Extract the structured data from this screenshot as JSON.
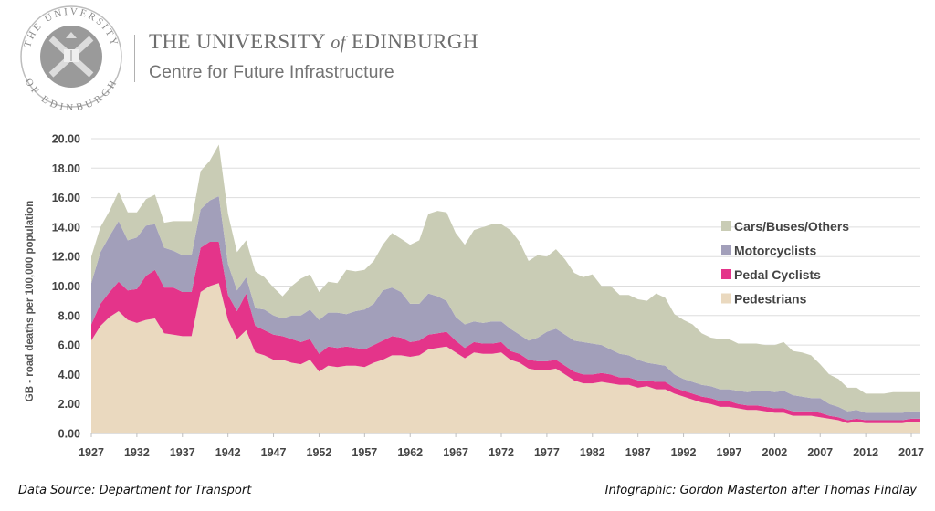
{
  "header": {
    "seal_text_top": "THE UNIVERSITY",
    "seal_text_bottom": "OF EDINBURGH",
    "university_pre": "THE UNIVERSITY ",
    "university_of": "of",
    "university_post": " EDINBURGH",
    "centre": "Centre for Future Infrastructure"
  },
  "footer": {
    "source": "Data Source: Department for Transport",
    "credit": "Infographic: Gordon Masterton after Thomas Findlay"
  },
  "colors": {
    "pedestrians": "#ead9bf",
    "pedal_cyclists": "#e4348a",
    "motorcyclists": "#a29fba",
    "cars": "#c9ccb5",
    "grid": "#dddddd"
  },
  "chart_data": {
    "type": "area",
    "stacked": true,
    "title": "",
    "xlabel": "",
    "ylabel": "GB - road deaths per 100,000 population",
    "ylim": [
      0,
      20
    ],
    "xlim": [
      1927,
      2018
    ],
    "y_ticks": [
      "0.00",
      "2.00",
      "4.00",
      "6.00",
      "8.00",
      "10.00",
      "12.00",
      "14.00",
      "16.00",
      "18.00",
      "20.00"
    ],
    "x_ticks": [
      "1927",
      "1932",
      "1937",
      "1942",
      "1947",
      "1952",
      "1957",
      "1962",
      "1967",
      "1972",
      "1977",
      "1982",
      "1987",
      "1992",
      "1997",
      "2002",
      "2007",
      "2012",
      "2017"
    ],
    "legend_position": "right",
    "legend": [
      "Cars/Buses/Others",
      "Motorcyclists",
      "Pedal Cyclists",
      "Pedestrians"
    ],
    "x": [
      1927,
      1928,
      1929,
      1930,
      1931,
      1932,
      1933,
      1934,
      1935,
      1936,
      1937,
      1938,
      1939,
      1940,
      1941,
      1942,
      1943,
      1944,
      1945,
      1946,
      1947,
      1948,
      1949,
      1950,
      1951,
      1952,
      1953,
      1954,
      1955,
      1956,
      1957,
      1958,
      1959,
      1960,
      1961,
      1962,
      1963,
      1964,
      1965,
      1966,
      1967,
      1968,
      1969,
      1970,
      1971,
      1972,
      1973,
      1974,
      1975,
      1976,
      1977,
      1978,
      1979,
      1980,
      1981,
      1982,
      1983,
      1984,
      1985,
      1986,
      1987,
      1988,
      1989,
      1990,
      1991,
      1992,
      1993,
      1994,
      1995,
      1996,
      1997,
      1998,
      1999,
      2000,
      2001,
      2002,
      2003,
      2004,
      2005,
      2006,
      2007,
      2008,
      2009,
      2010,
      2011,
      2012,
      2013,
      2014,
      2015,
      2016,
      2017,
      2018
    ],
    "series": [
      {
        "name": "Pedestrians",
        "values": [
          6.3,
          7.3,
          7.9,
          8.3,
          7.7,
          7.5,
          7.7,
          7.8,
          6.8,
          6.7,
          6.6,
          6.6,
          9.6,
          10.0,
          10.2,
          7.7,
          6.4,
          7.0,
          5.5,
          5.3,
          5.0,
          5.0,
          4.8,
          4.7,
          5.0,
          4.2,
          4.6,
          4.5,
          4.6,
          4.6,
          4.5,
          4.8,
          5.0,
          5.3,
          5.3,
          5.2,
          5.3,
          5.7,
          5.8,
          5.9,
          5.5,
          5.1,
          5.5,
          5.4,
          5.4,
          5.5,
          5.0,
          4.8,
          4.4,
          4.3,
          4.3,
          4.4,
          4.0,
          3.6,
          3.4,
          3.4,
          3.5,
          3.4,
          3.3,
          3.3,
          3.1,
          3.2,
          3.0,
          3.0,
          2.7,
          2.5,
          2.3,
          2.1,
          2.0,
          1.8,
          1.8,
          1.7,
          1.6,
          1.6,
          1.5,
          1.4,
          1.4,
          1.2,
          1.2,
          1.2,
          1.1,
          1.0,
          0.9,
          0.7,
          0.8,
          0.7,
          0.7,
          0.7,
          0.7,
          0.7,
          0.8,
          0.8
        ]
      },
      {
        "name": "Pedal Cyclists",
        "values": [
          1.1,
          1.5,
          1.7,
          2.0,
          2.0,
          2.3,
          3.0,
          3.3,
          3.1,
          3.2,
          3.0,
          3.0,
          3.0,
          3.0,
          2.8,
          1.7,
          1.9,
          2.5,
          1.8,
          1.7,
          1.7,
          1.6,
          1.6,
          1.5,
          1.4,
          1.2,
          1.3,
          1.3,
          1.3,
          1.2,
          1.2,
          1.2,
          1.3,
          1.3,
          1.2,
          1.0,
          1.0,
          1.0,
          1.0,
          1.0,
          0.8,
          0.7,
          0.7,
          0.7,
          0.7,
          0.7,
          0.6,
          0.6,
          0.6,
          0.6,
          0.6,
          0.6,
          0.6,
          0.6,
          0.6,
          0.6,
          0.6,
          0.6,
          0.5,
          0.5,
          0.5,
          0.4,
          0.5,
          0.5,
          0.4,
          0.4,
          0.4,
          0.4,
          0.4,
          0.4,
          0.4,
          0.3,
          0.3,
          0.3,
          0.3,
          0.3,
          0.3,
          0.3,
          0.3,
          0.3,
          0.3,
          0.2,
          0.2,
          0.2,
          0.2,
          0.2,
          0.2,
          0.2,
          0.2,
          0.2,
          0.2,
          0.2
        ]
      },
      {
        "name": "Motorcyclists",
        "values": [
          2.8,
          3.5,
          3.8,
          4.1,
          3.4,
          3.5,
          3.4,
          3.1,
          2.7,
          2.5,
          2.5,
          2.5,
          2.6,
          2.8,
          3.1,
          2.1,
          1.4,
          1.1,
          1.2,
          1.4,
          1.3,
          1.2,
          1.6,
          1.8,
          2.0,
          2.3,
          2.3,
          2.4,
          2.2,
          2.5,
          2.7,
          2.8,
          3.4,
          3.3,
          3.1,
          2.6,
          2.5,
          2.8,
          2.5,
          2.1,
          1.6,
          1.6,
          1.4,
          1.4,
          1.5,
          1.4,
          1.5,
          1.3,
          1.3,
          1.6,
          2.0,
          2.1,
          2.1,
          2.1,
          2.2,
          2.1,
          1.9,
          1.7,
          1.6,
          1.5,
          1.4,
          1.2,
          1.2,
          1.1,
          0.9,
          0.8,
          0.8,
          0.8,
          0.8,
          0.8,
          0.8,
          0.9,
          0.9,
          1.0,
          1.1,
          1.1,
          1.2,
          1.1,
          1.0,
          0.9,
          1.0,
          0.8,
          0.7,
          0.6,
          0.6,
          0.5,
          0.5,
          0.5,
          0.5,
          0.5,
          0.5,
          0.5
        ]
      },
      {
        "name": "Cars/Buses/Others",
        "values": [
          1.8,
          1.7,
          1.7,
          2.0,
          1.9,
          1.7,
          1.8,
          2.0,
          1.7,
          2.0,
          2.3,
          2.3,
          2.6,
          2.7,
          3.5,
          3.4,
          2.6,
          2.5,
          2.5,
          2.2,
          1.9,
          1.5,
          2.0,
          2.5,
          2.4,
          1.9,
          2.1,
          2.0,
          3.0,
          2.7,
          2.7,
          2.9,
          3.1,
          3.7,
          3.6,
          4.0,
          4.3,
          5.4,
          5.8,
          6.0,
          5.7,
          5.4,
          6.2,
          6.5,
          6.6,
          6.6,
          6.7,
          6.3,
          5.4,
          5.6,
          5.1,
          5.4,
          5.1,
          4.6,
          4.4,
          4.7,
          4.0,
          4.3,
          4.0,
          4.1,
          4.1,
          4.2,
          4.8,
          4.6,
          4.1,
          4.0,
          3.9,
          3.5,
          3.3,
          3.4,
          3.4,
          3.2,
          3.3,
          3.2,
          3.1,
          3.2,
          3.3,
          3.0,
          3.0,
          2.9,
          2.3,
          2.0,
          1.9,
          1.6,
          1.5,
          1.3,
          1.3,
          1.3,
          1.4,
          1.4,
          1.3,
          1.3
        ]
      }
    ]
  }
}
